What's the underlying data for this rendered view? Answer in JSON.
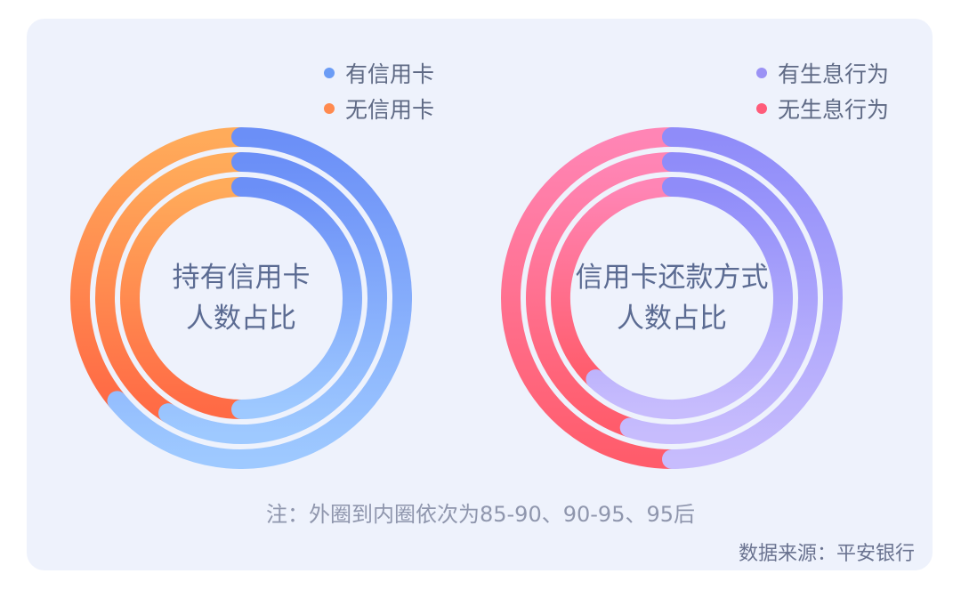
{
  "note": "注：外圈到内圈依次为85-90、90-95、95后",
  "source": "数据来源：平安银行",
  "chart_data": [
    {
      "type": "donut",
      "center_label": [
        "持有信用卡",
        "人数占比"
      ],
      "legend": [
        {
          "label": "有信用卡",
          "color": "#6b8ff7"
        },
        {
          "label": "无信用卡",
          "color": "#ff8a4f"
        }
      ],
      "rings_outer_to_inner": [
        "85-90",
        "90-95",
        "95后"
      ],
      "series": [
        {
          "name": "有信用卡",
          "values": [
            0.64,
            0.59,
            0.5
          ],
          "colors": [
            "#6b8ff7",
            "#9ec9ff"
          ]
        },
        {
          "name": "无信用卡",
          "values": [
            0.36,
            0.41,
            0.5
          ],
          "colors": [
            "#ffab5a",
            "#ff6a45"
          ]
        }
      ]
    },
    {
      "type": "donut",
      "center_label": [
        "信用卡还款方式",
        "人数占比"
      ],
      "legend": [
        {
          "label": "有生息行为",
          "color": "#9b92f5"
        },
        {
          "label": "无生息行为",
          "color": "#ff5c7a"
        }
      ],
      "rings_outer_to_inner": [
        "85-90",
        "90-95",
        "95后"
      ],
      "series": [
        {
          "name": "有生息行为",
          "values": [
            0.5,
            0.55,
            0.62
          ],
          "colors": [
            "#8f8cf9",
            "#c7bcfd"
          ]
        },
        {
          "name": "无生息行为",
          "values": [
            0.5,
            0.45,
            0.38
          ],
          "colors": [
            "#ff85b5",
            "#ff5c6b"
          ]
        }
      ]
    }
  ]
}
